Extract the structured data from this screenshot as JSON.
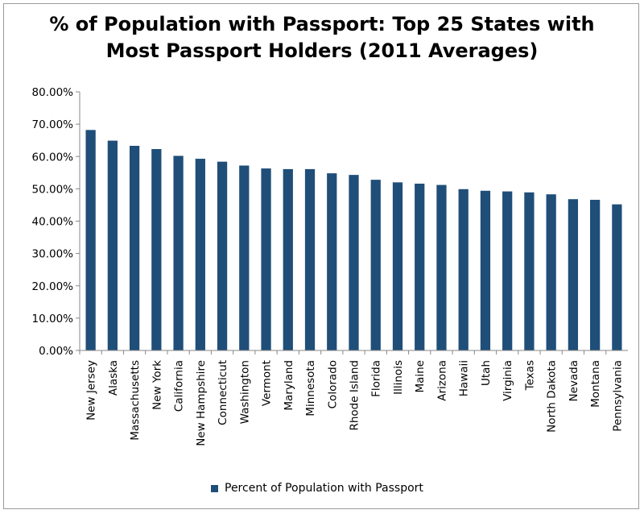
{
  "chart_data": {
    "type": "bar",
    "title_lines": [
      "% of Population with Passport: Top 25 States with",
      "Most Passport Holders (2011 Averages)"
    ],
    "categories": [
      "New Jersey",
      "Alaska",
      "Massachusetts",
      "New York",
      "California",
      "New Hampshire",
      "Connecticut",
      "Washington",
      "Vermont",
      "Maryland",
      "Minnesota",
      "Colorado",
      "Rhode Island",
      "Florida",
      "Illinois",
      "Maine",
      "Arizona",
      "Hawaii",
      "Utah",
      "Virginia",
      "Texas",
      "North Dakota",
      "Nevada",
      "Montana",
      "Pennsylvania"
    ],
    "series": [
      {
        "name": "Percent of Population with Passport",
        "values": [
          68.2,
          64.9,
          63.3,
          62.3,
          60.2,
          59.3,
          58.4,
          57.2,
          56.3,
          56.1,
          56.1,
          54.8,
          54.3,
          52.8,
          52.0,
          51.6,
          51.2,
          49.9,
          49.4,
          49.2,
          48.9,
          48.3,
          46.8,
          46.6,
          45.2
        ]
      }
    ],
    "ylim": [
      0,
      80
    ],
    "y_ticks": [
      "0.00%",
      "10.00%",
      "20.00%",
      "30.00%",
      "40.00%",
      "50.00%",
      "60.00%",
      "70.00%",
      "80.00%"
    ],
    "grid": false,
    "legend_position": "bottom",
    "colors": {
      "bar": "#1f4e79",
      "axis": "#888888"
    }
  }
}
